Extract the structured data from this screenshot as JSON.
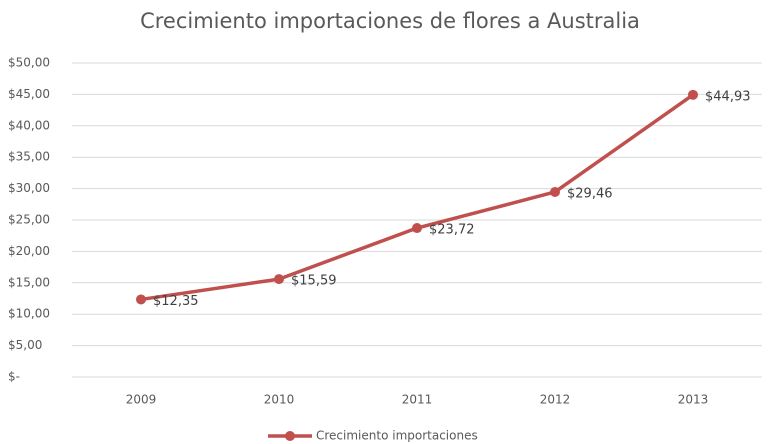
{
  "chart_data": {
    "type": "line",
    "title": "Crecimiento importaciones de flores a Australia",
    "categories": [
      "2009",
      "2010",
      "2011",
      "2012",
      "2013"
    ],
    "series": [
      {
        "name": "Crecimiento importaciones",
        "color": "#c0504d",
        "values": [
          12.35,
          15.59,
          23.72,
          29.46,
          44.93
        ],
        "value_labels": [
          "$12,35",
          "$15,59",
          "$23,72",
          "$29,46",
          "$44,93"
        ]
      }
    ],
    "ylim": [
      0,
      50
    ],
    "yticks": [
      {
        "value": 0,
        "label": "$-"
      },
      {
        "value": 5,
        "label": "$5,00"
      },
      {
        "value": 10,
        "label": "$10,00"
      },
      {
        "value": 15,
        "label": "$15,00"
      },
      {
        "value": 20,
        "label": "$20,00"
      },
      {
        "value": 25,
        "label": "$25,00"
      },
      {
        "value": 30,
        "label": "$30,00"
      },
      {
        "value": 35,
        "label": "$35,00"
      },
      {
        "value": 40,
        "label": "$40,00"
      },
      {
        "value": 45,
        "label": "$45,00"
      },
      {
        "value": 50,
        "label": "$50,00"
      }
    ],
    "grid": true,
    "legend": "bottom"
  }
}
